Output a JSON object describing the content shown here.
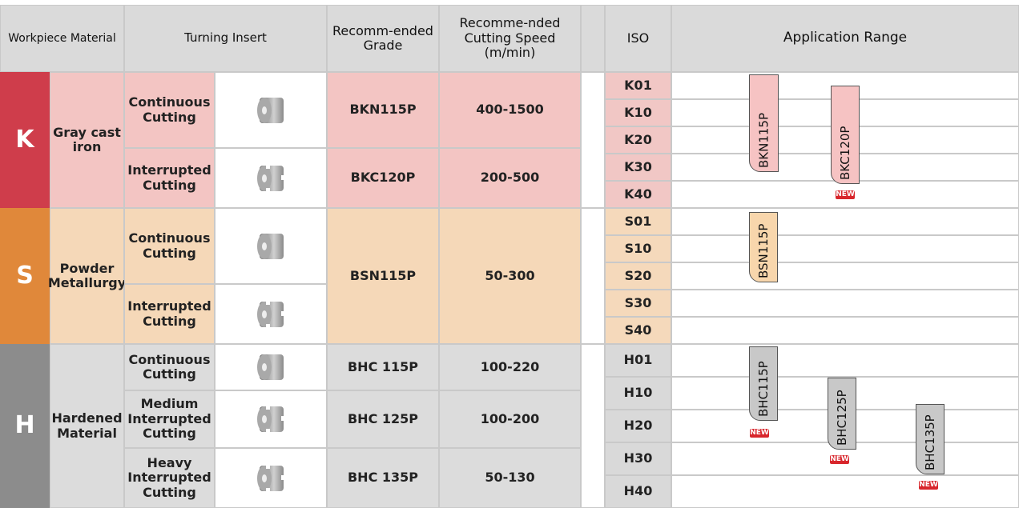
{
  "header": {
    "workpiece": "Workpiece Material",
    "insert": "Turning Insert",
    "grade": "Recomm-ended Grade",
    "speed": "Recomme-nded Cutting Speed (m/min)",
    "iso": "ISO",
    "range": "Application Range"
  },
  "groups": [
    {
      "letter": "K",
      "material": "Gray cast iron",
      "inserts": [
        "Continuous Cutting",
        "Interrupted Cutting"
      ],
      "grades": [
        {
          "grade": "BKN115P",
          "speed": "400-1500"
        },
        {
          "grade": "BKC120P",
          "speed": "200-500"
        }
      ],
      "iso": [
        "K01",
        "K10",
        "K20",
        "K30",
        "K40"
      ],
      "ranges": [
        {
          "label": "BKN115P"
        },
        {
          "label": "BKC120P",
          "badge": "NEW"
        }
      ]
    },
    {
      "letter": "S",
      "material": "Powder Metallurgy",
      "inserts": [
        "Continuous Cutting",
        "Interrupted Cutting"
      ],
      "grades": [
        {
          "grade": "BSN115P",
          "speed": "50-300"
        }
      ],
      "iso": [
        "S01",
        "S10",
        "S20",
        "S30",
        "S40"
      ],
      "ranges": [
        {
          "label": "BSN115P"
        }
      ]
    },
    {
      "letter": "H",
      "material": "Hardened Material",
      "inserts": [
        "Continuous Cutting",
        "Medium Interrupted Cutting",
        "Heavy Interrupted Cutting"
      ],
      "grades": [
        {
          "grade": "BHC 115P",
          "speed": "100-220"
        },
        {
          "grade": "BHC 125P",
          "speed": "100-200"
        },
        {
          "grade": "BHC 135P",
          "speed": "50-130"
        }
      ],
      "iso": [
        "H01",
        "H10",
        "H20",
        "H30",
        "H40"
      ],
      "ranges": [
        {
          "label": "BHC115P",
          "badge": "NEW"
        },
        {
          "label": "BHC125P",
          "badge": "NEW"
        },
        {
          "label": "BHC135P",
          "badge": "NEW"
        }
      ]
    }
  ]
}
